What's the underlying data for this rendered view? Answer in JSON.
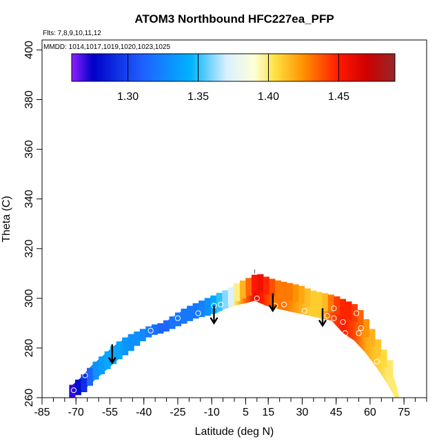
{
  "chart_data": {
    "type": "heatmap",
    "title": "ATOM3 Northbound HFC227ea_PFP",
    "annotation_flights": "Flts: 7,8,9,10,11,12",
    "annotation_dates": "MMDD: 1014,1017,1019,1020,1023,1025",
    "xlabel": "Latitude (deg N)",
    "ylabel": "Theta (C)",
    "xlim": [
      -85,
      85
    ],
    "ylim": [
      260,
      404
    ],
    "xticks": [
      -85,
      -70,
      -55,
      -40,
      -25,
      -10,
      5,
      15,
      30,
      45,
      60,
      75
    ],
    "yticks": [
      260,
      280,
      300,
      320,
      340,
      360,
      380,
      400
    ],
    "colorbar": {
      "range": [
        1.26,
        1.49
      ],
      "ticks": [
        1.3,
        1.35,
        1.4,
        1.45
      ],
      "tick_labels": [
        "1.30",
        "1.35",
        "1.40",
        "1.45"
      ],
      "colors": [
        "#8f20ff",
        "#0000c8",
        "#1f5fff",
        "#00b4ff",
        "#d8f0ff",
        "#ffffd8",
        "#ffe040",
        "#ff9000",
        "#ff1800",
        "#d00000",
        "#962828"
      ],
      "color_stops": [
        1.26,
        1.275,
        1.31,
        1.345,
        1.37,
        1.39,
        1.405,
        1.425,
        1.45,
        1.47,
        1.49
      ]
    },
    "curtain_top": [
      [
        -73,
        264
      ],
      [
        -68,
        268
      ],
      [
        -63,
        273
      ],
      [
        -58,
        277
      ],
      [
        -53,
        281
      ],
      [
        -48,
        284
      ],
      [
        -43,
        286
      ],
      [
        -38,
        288
      ],
      [
        -33,
        289
      ],
      [
        -28,
        292
      ],
      [
        -23,
        295
      ],
      [
        -18,
        297
      ],
      [
        -13,
        299
      ],
      [
        -8,
        301
      ],
      [
        -3,
        303
      ],
      [
        0,
        305
      ],
      [
        5,
        307
      ],
      [
        9,
        309
      ],
      [
        14,
        307
      ],
      [
        18,
        306
      ],
      [
        23,
        305
      ],
      [
        28,
        304
      ],
      [
        33,
        302
      ],
      [
        38,
        301
      ],
      [
        43,
        300
      ],
      [
        48,
        298
      ],
      [
        53,
        296
      ],
      [
        58,
        289
      ],
      [
        63,
        281
      ],
      [
        68,
        273
      ],
      [
        71,
        267
      ]
    ],
    "curtain_bottom": [
      [
        -73,
        260
      ],
      [
        -68,
        262
      ],
      [
        -63,
        266
      ],
      [
        -58,
        270
      ],
      [
        -53,
        274
      ],
      [
        -48,
        278
      ],
      [
        -43,
        282
      ],
      [
        -38,
        285
      ],
      [
        -33,
        286
      ],
      [
        -28,
        288
      ],
      [
        -23,
        290
      ],
      [
        -18,
        292
      ],
      [
        -13,
        293
      ],
      [
        -8,
        294
      ],
      [
        -3,
        296
      ],
      [
        0,
        297
      ],
      [
        5,
        298
      ],
      [
        9,
        299
      ],
      [
        14,
        297
      ],
      [
        18,
        296
      ],
      [
        23,
        295
      ],
      [
        28,
        294
      ],
      [
        33,
        293
      ],
      [
        38,
        292
      ],
      [
        43,
        291
      ],
      [
        48,
        286
      ],
      [
        53,
        283
      ],
      [
        58,
        278
      ],
      [
        63,
        272
      ],
      [
        68,
        265
      ],
      [
        71,
        260
      ],
      [
        73,
        260
      ]
    ],
    "curtain_values": [
      [
        -73,
        1.27
      ],
      [
        -68,
        1.29
      ],
      [
        -63,
        1.33
      ],
      [
        -58,
        1.34
      ],
      [
        -53,
        1.34
      ],
      [
        -48,
        1.33
      ],
      [
        -43,
        1.33
      ],
      [
        -38,
        1.32
      ],
      [
        -33,
        1.31
      ],
      [
        -28,
        1.32
      ],
      [
        -23,
        1.32
      ],
      [
        -18,
        1.32
      ],
      [
        -13,
        1.33
      ],
      [
        -8,
        1.35
      ],
      [
        -3,
        1.37
      ],
      [
        0,
        1.4
      ],
      [
        3,
        1.42
      ],
      [
        6,
        1.44
      ],
      [
        9,
        1.46
      ],
      [
        12,
        1.45
      ],
      [
        15,
        1.44
      ],
      [
        18,
        1.43
      ],
      [
        23,
        1.43
      ],
      [
        28,
        1.42
      ],
      [
        33,
        1.41
      ],
      [
        38,
        1.41
      ],
      [
        43,
        1.44
      ],
      [
        48,
        1.45
      ],
      [
        53,
        1.44
      ],
      [
        58,
        1.42
      ],
      [
        63,
        1.41
      ],
      [
        68,
        1.4
      ],
      [
        73,
        1.4
      ]
    ],
    "samples": [
      [
        -71,
        263
      ],
      [
        -66,
        269
      ],
      [
        -37,
        287
      ],
      [
        -25,
        292
      ],
      [
        -16,
        294
      ],
      [
        -9,
        297
      ],
      [
        -6,
        297.5
      ],
      [
        10,
        300
      ],
      [
        18,
        297
      ],
      [
        22,
        297.5
      ],
      [
        31,
        295
      ],
      [
        41,
        293
      ],
      [
        44,
        296
      ],
      [
        44,
        292
      ],
      [
        48,
        290.5
      ],
      [
        49,
        286
      ],
      [
        54,
        294
      ],
      [
        55,
        286
      ],
      [
        56,
        288
      ],
      [
        63,
        274.5
      ]
    ],
    "arrows": [
      {
        "lat": -55,
        "theta": 283
      }
    ],
    "arrow_list": [
      [
        -54,
        281.5,
        274
      ],
      [
        -9,
        297,
        290
      ],
      [
        17,
        302,
        295
      ],
      [
        39,
        296,
        289
      ]
    ],
    "marker": [
      9,
      310
    ]
  }
}
